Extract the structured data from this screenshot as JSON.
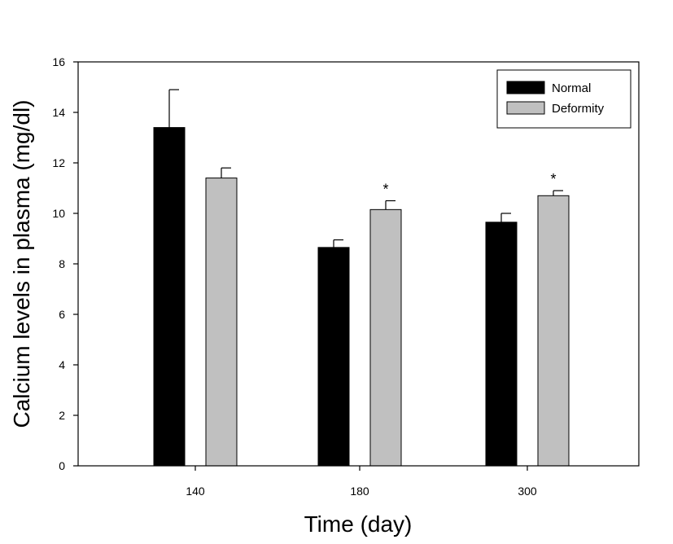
{
  "chart_data": {
    "type": "bar",
    "title": "",
    "xlabel": "Time (day)",
    "ylabel": "Calcium levels in plasma (mg/dl)",
    "categories": [
      "140",
      "180",
      "300"
    ],
    "ylim": [
      0,
      16
    ],
    "yticks": [
      "0",
      "2",
      "4",
      "6",
      "8",
      "10",
      "12",
      "14",
      "16"
    ],
    "series": [
      {
        "name": "Normal",
        "color": "#000000",
        "values": [
          13.4,
          8.65,
          9.65
        ],
        "errors": [
          1.5,
          0.3,
          0.35
        ]
      },
      {
        "name": "Deformity",
        "color": "#c0c0c0",
        "values": [
          11.4,
          10.15,
          10.7
        ],
        "errors": [
          0.4,
          0.35,
          0.2
        ]
      }
    ],
    "annotations": [
      {
        "text": "*",
        "series": "Deformity",
        "category": "180"
      },
      {
        "text": "*",
        "series": "Deformity",
        "category": "300"
      }
    ],
    "legend": "top-right",
    "grid": false
  }
}
